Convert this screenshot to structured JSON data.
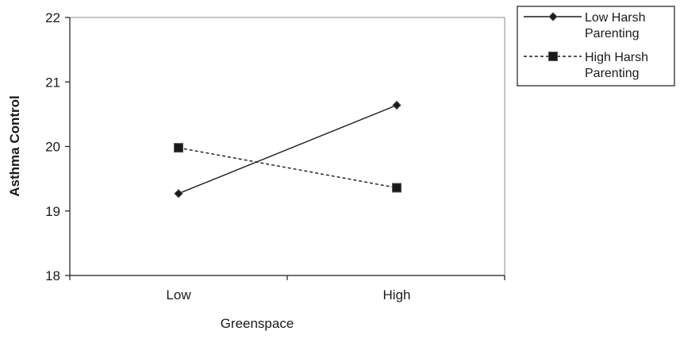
{
  "chart_data": {
    "type": "line",
    "categories": [
      "Low",
      "High"
    ],
    "xlabel": "Greenspace",
    "ylabel": "Asthma Control",
    "ylim": [
      18,
      22
    ],
    "yticks": [
      "18",
      "19",
      "20",
      "21",
      "22"
    ],
    "grid": false,
    "legend_position": "top-right",
    "series": [
      {
        "name": "Low Harsh Parenting",
        "legend_lines": [
          "Low Harsh",
          "Parenting"
        ],
        "values": [
          19.27,
          20.64
        ],
        "line_style": "solid",
        "marker": "diamond",
        "color": "#1a1a1a"
      },
      {
        "name": "High Harsh Parenting",
        "legend_lines": [
          "High Harsh",
          "Parenting"
        ],
        "values": [
          19.98,
          19.36
        ],
        "line_style": "dashed",
        "marker": "square",
        "color": "#1a1a1a"
      }
    ]
  }
}
